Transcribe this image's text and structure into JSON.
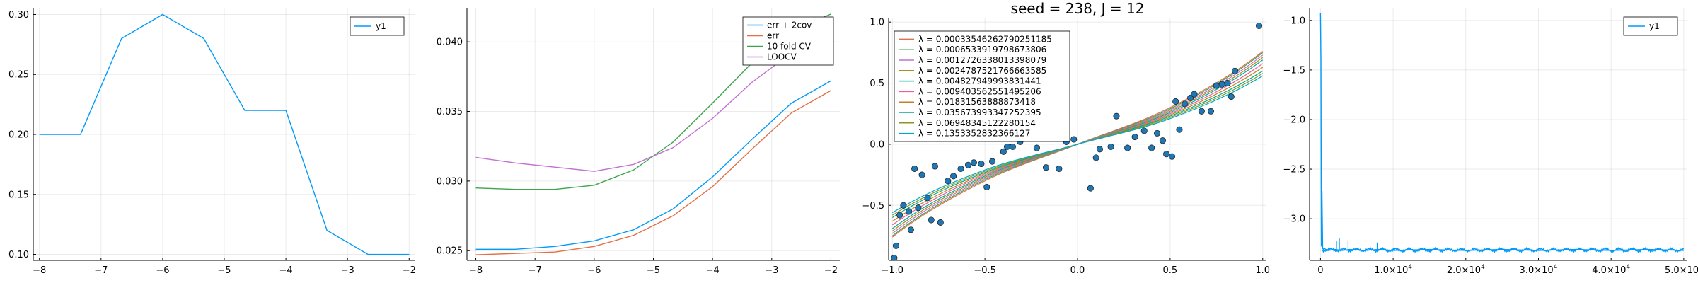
{
  "chart_data": [
    {
      "type": "line",
      "title": "",
      "xlabel": "",
      "ylabel": "",
      "xlim": [
        -8.1,
        -1.9
      ],
      "ylim": [
        0.095,
        0.305
      ],
      "xticks": [
        -8,
        -7,
        -6,
        -5,
        -4,
        -3,
        -2
      ],
      "yticks": [
        0.1,
        0.15,
        0.2,
        0.25,
        0.3
      ],
      "grid": true,
      "legend_position": "top-right",
      "series": [
        {
          "name": "y1",
          "color": "#009AFA",
          "x": [
            -8,
            -7.333,
            -6.667,
            -6,
            -5.333,
            -4.667,
            -4,
            -3.333,
            -2.667,
            -2
          ],
          "y": [
            0.2,
            0.2,
            0.28,
            0.3,
            0.28,
            0.22,
            0.22,
            0.12,
            0.1,
            0.1
          ]
        }
      ]
    },
    {
      "type": "line",
      "title": "",
      "xlabel": "",
      "ylabel": "",
      "xlim": [
        -8.15,
        -1.85
      ],
      "ylim": [
        0.0243,
        0.0424
      ],
      "xticks": [
        -8,
        -7,
        -6,
        -5,
        -4,
        -3,
        -2
      ],
      "yticks": [
        0.025,
        0.03,
        0.035,
        0.04
      ],
      "grid": true,
      "legend_position": "top-right",
      "series": [
        {
          "name": "err + 2cov",
          "color": "#009AFA",
          "x": [
            -8,
            -7.333,
            -6.667,
            -6,
            -5.333,
            -4.667,
            -4,
            -3.333,
            -2.667,
            -2
          ],
          "y": [
            0.0251,
            0.0251,
            0.0253,
            0.0257,
            0.0265,
            0.028,
            0.0303,
            0.033,
            0.0356,
            0.0372
          ]
        },
        {
          "name": "err",
          "color": "#E36F47",
          "x": [
            -8,
            -7.333,
            -6.667,
            -6,
            -5.333,
            -4.667,
            -4,
            -3.333,
            -2.667,
            -2
          ],
          "y": [
            0.0247,
            0.0248,
            0.0249,
            0.0253,
            0.0261,
            0.0275,
            0.0296,
            0.0323,
            0.0349,
            0.0365
          ]
        },
        {
          "name": "10 fold CV",
          "color": "#3EA44E",
          "x": [
            -8,
            -7.333,
            -6.667,
            -6,
            -5.333,
            -4.667,
            -4,
            -3.333,
            -2.667,
            -2
          ],
          "y": [
            0.0295,
            0.0294,
            0.0294,
            0.0297,
            0.0308,
            0.0328,
            0.0356,
            0.0385,
            0.0408,
            0.042
          ]
        },
        {
          "name": "LOOCV",
          "color": "#C271D2",
          "x": [
            -8,
            -7.333,
            -6.667,
            -6,
            -5.333,
            -4.667,
            -4,
            -3.333,
            -2.667,
            -2
          ],
          "y": [
            0.0317,
            0.0313,
            0.031,
            0.0307,
            0.0312,
            0.0324,
            0.0345,
            0.0371,
            0.0392,
            0.041
          ]
        }
      ]
    },
    {
      "type": "scatter",
      "title": "seed = 238, J = 12",
      "xlabel": "",
      "ylabel": "",
      "xlim": [
        -1.02,
        1.02
      ],
      "ylim": [
        -0.95,
        1.03
      ],
      "xticks": [
        -1.0,
        -0.5,
        0.0,
        0.5,
        1.0
      ],
      "xtick_labels": [
        "-1.0",
        "-0.5",
        "0.0",
        "0.5",
        "1.0"
      ],
      "yticks": [
        -0.5,
        0.0,
        0.5,
        1.0
      ],
      "ytick_labels": [
        "-0.5",
        "0.0",
        "0.5",
        "1.0"
      ],
      "grid": true,
      "legend_position": "top-left",
      "point_color": "#1F77B4",
      "points": {
        "x": [
          -0.99,
          -0.98,
          -0.96,
          -0.94,
          -0.91,
          -0.9,
          -0.88,
          -0.86,
          -0.84,
          -0.81,
          -0.79,
          -0.77,
          -0.74,
          -0.7,
          -0.67,
          -0.63,
          -0.59,
          -0.56,
          -0.52,
          -0.49,
          -0.46,
          -0.42,
          -0.4,
          -0.38,
          -0.35,
          -0.31,
          -0.26,
          -0.22,
          -0.17,
          -0.1,
          -0.06,
          -0.02,
          0.07,
          0.1,
          0.12,
          0.18,
          0.21,
          0.27,
          0.31,
          0.36,
          0.4,
          0.43,
          0.46,
          0.48,
          0.51,
          0.53,
          0.55,
          0.58,
          0.61,
          0.63,
          0.67,
          0.72,
          0.75,
          0.78,
          0.81,
          0.83,
          0.85,
          0.98
        ],
        "y": [
          -0.93,
          -0.83,
          -0.58,
          -0.5,
          -0.55,
          -0.7,
          -0.2,
          -0.52,
          -0.25,
          -0.44,
          -0.62,
          -0.18,
          -0.64,
          -0.3,
          -0.26,
          -0.2,
          -0.17,
          -0.15,
          -0.16,
          -0.35,
          -0.14,
          0.05,
          -0.06,
          -0.02,
          -0.02,
          0.02,
          0.12,
          -0.03,
          -0.19,
          -0.2,
          0.02,
          0.04,
          -0.36,
          -0.11,
          -0.04,
          -0.02,
          0.23,
          -0.03,
          0.06,
          0.11,
          -0.03,
          0.09,
          0.03,
          -0.08,
          -0.1,
          0.35,
          0.12,
          0.33,
          0.38,
          0.41,
          0.27,
          0.27,
          0.48,
          0.49,
          0.5,
          0.39,
          0.6,
          0.97
        ]
      },
      "series": [
        {
          "name": "λ = 0.00033546262790251185",
          "color": "#E36F47",
          "x": [
            -1,
            -0.5,
            0,
            0.5,
            1
          ],
          "y": [
            -0.76,
            -0.3,
            0.0,
            0.3,
            0.76
          ]
        },
        {
          "name": "λ = 0.0006533919798673806",
          "color": "#3EA44E",
          "x": [
            -1,
            -0.5,
            0,
            0.5,
            1
          ],
          "y": [
            -0.75,
            -0.29,
            0.0,
            0.29,
            0.75
          ]
        },
        {
          "name": "λ = 0.0012726338013398079",
          "color": "#C271D2",
          "x": [
            -1,
            -0.5,
            0,
            0.5,
            1
          ],
          "y": [
            -0.73,
            -0.28,
            0.0,
            0.28,
            0.73
          ]
        },
        {
          "name": "λ = 0.0024787521766663585",
          "color": "#AC8D18",
          "x": [
            -1,
            -0.5,
            0,
            0.5,
            1
          ],
          "y": [
            -0.71,
            -0.27,
            0.0,
            0.27,
            0.71
          ]
        },
        {
          "name": "λ = 0.004827949993831441",
          "color": "#00A9AD",
          "x": [
            -1,
            -0.5,
            0,
            0.5,
            1
          ],
          "y": [
            -0.69,
            -0.26,
            0.0,
            0.26,
            0.69
          ]
        },
        {
          "name": "λ = 0.009403562551495206",
          "color": "#ED5E93",
          "x": [
            -1,
            -0.5,
            0,
            0.5,
            1
          ],
          "y": [
            -0.66,
            -0.25,
            0.0,
            0.25,
            0.66
          ]
        },
        {
          "name": "λ = 0.01831563888873418",
          "color": "#C68125",
          "x": [
            -1,
            -0.5,
            0,
            0.5,
            1
          ],
          "y": [
            -0.63,
            -0.24,
            0.0,
            0.24,
            0.63
          ]
        },
        {
          "name": "λ = 0.035673993347252395",
          "color": "#00A98D",
          "x": [
            -1,
            -0.5,
            0,
            0.5,
            1
          ],
          "y": [
            -0.6,
            -0.23,
            0.0,
            0.23,
            0.6
          ]
        },
        {
          "name": "λ = 0.06948345122280154",
          "color": "#8E971D",
          "x": [
            -1,
            -0.5,
            0,
            0.5,
            1
          ],
          "y": [
            -0.58,
            -0.22,
            0.0,
            0.22,
            0.58
          ]
        },
        {
          "name": "λ = 0.1353352832366127",
          "color": "#00A8CB",
          "x": [
            -1,
            -0.5,
            0,
            0.5,
            1
          ],
          "y": [
            -0.56,
            -0.21,
            0.0,
            0.21,
            0.56
          ]
        }
      ]
    },
    {
      "type": "line",
      "title": "",
      "xlabel": "",
      "ylabel": "",
      "xlim": [
        -1500,
        50500
      ],
      "ylim": [
        -3.42,
        -0.88
      ],
      "xticks": [
        0,
        10000,
        20000,
        30000,
        40000,
        50000
      ],
      "xtick_labels": [
        "0",
        "1.0×10",
        "2.0×10",
        "3.0×10",
        "4.0×10",
        "5.0×10"
      ],
      "xtick_exponent": "4",
      "yticks": [
        -3.0,
        -2.5,
        -2.0,
        -1.5,
        -1.0
      ],
      "ytick_labels": [
        "-3.0",
        "-2.5",
        "-2.0",
        "-1.5",
        "-1.0"
      ],
      "grid": true,
      "legend_position": "top-right",
      "series": [
        {
          "name": "y1",
          "color": "#009AFA",
          "x": [
            0,
            60,
            120,
            200,
            300,
            400,
            500,
            1000,
            2000,
            3000,
            4000,
            6000,
            8000,
            10000,
            15000,
            20000,
            25000,
            30000,
            35000,
            40000,
            45000,
            50000
          ],
          "y": [
            -0.93,
            -1.4,
            -3.28,
            -2.72,
            -3.3,
            -3.31,
            -3.3,
            -3.32,
            -3.31,
            -3.32,
            -3.31,
            -3.32,
            -3.31,
            -3.32,
            -3.31,
            -3.32,
            -3.31,
            -3.32,
            -3.31,
            -3.32,
            -3.31,
            -3.32
          ],
          "spikes": {
            "x": [
              2200,
              2600,
              3800,
              7800
            ],
            "y": [
              -3.22,
              -3.2,
              -3.22,
              -3.24
            ]
          }
        }
      ]
    }
  ]
}
